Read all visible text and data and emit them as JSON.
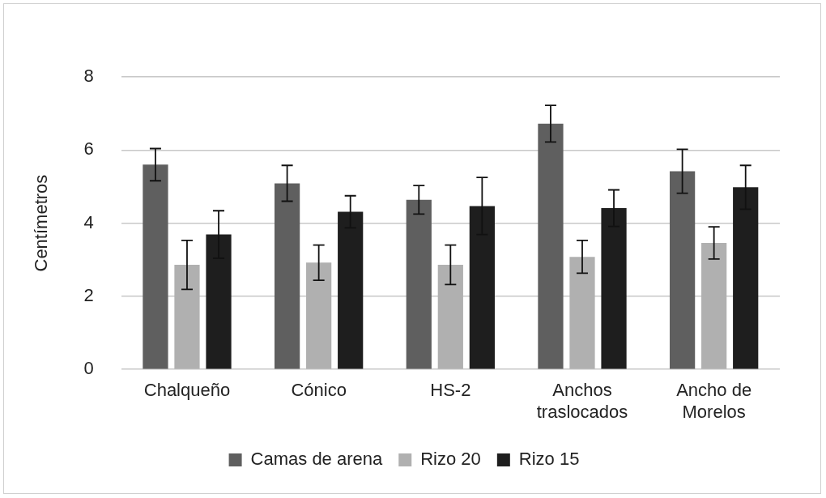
{
  "chart_data": {
    "type": "bar",
    "ylabel": "Centímetros",
    "categories": [
      "Chalqueño",
      "Cónico",
      "HS-2",
      "Anchos traslocados",
      "Ancho de Morelos"
    ],
    "series": [
      {
        "name": "Camas de arena",
        "color": "#5f5f5f",
        "values": [
          5.6,
          5.09,
          4.64,
          6.72,
          5.42
        ],
        "errors": [
          0.44,
          0.49,
          0.39,
          0.5,
          0.6
        ]
      },
      {
        "name": "Rizo 20",
        "color": "#b0b0b0",
        "values": [
          2.86,
          2.92,
          2.86,
          3.08,
          3.46
        ],
        "errors": [
          0.67,
          0.48,
          0.54,
          0.45,
          0.44
        ]
      },
      {
        "name": "Rizo 15",
        "color": "#1e1e1e",
        "values": [
          3.69,
          4.31,
          4.47,
          4.41,
          4.98
        ],
        "errors": [
          0.65,
          0.44,
          0.78,
          0.5,
          0.6
        ]
      }
    ],
    "ylim": [
      0,
      8
    ],
    "yticks": [
      0,
      2,
      4,
      6,
      8
    ],
    "grid": "y",
    "legend": "bottom"
  }
}
